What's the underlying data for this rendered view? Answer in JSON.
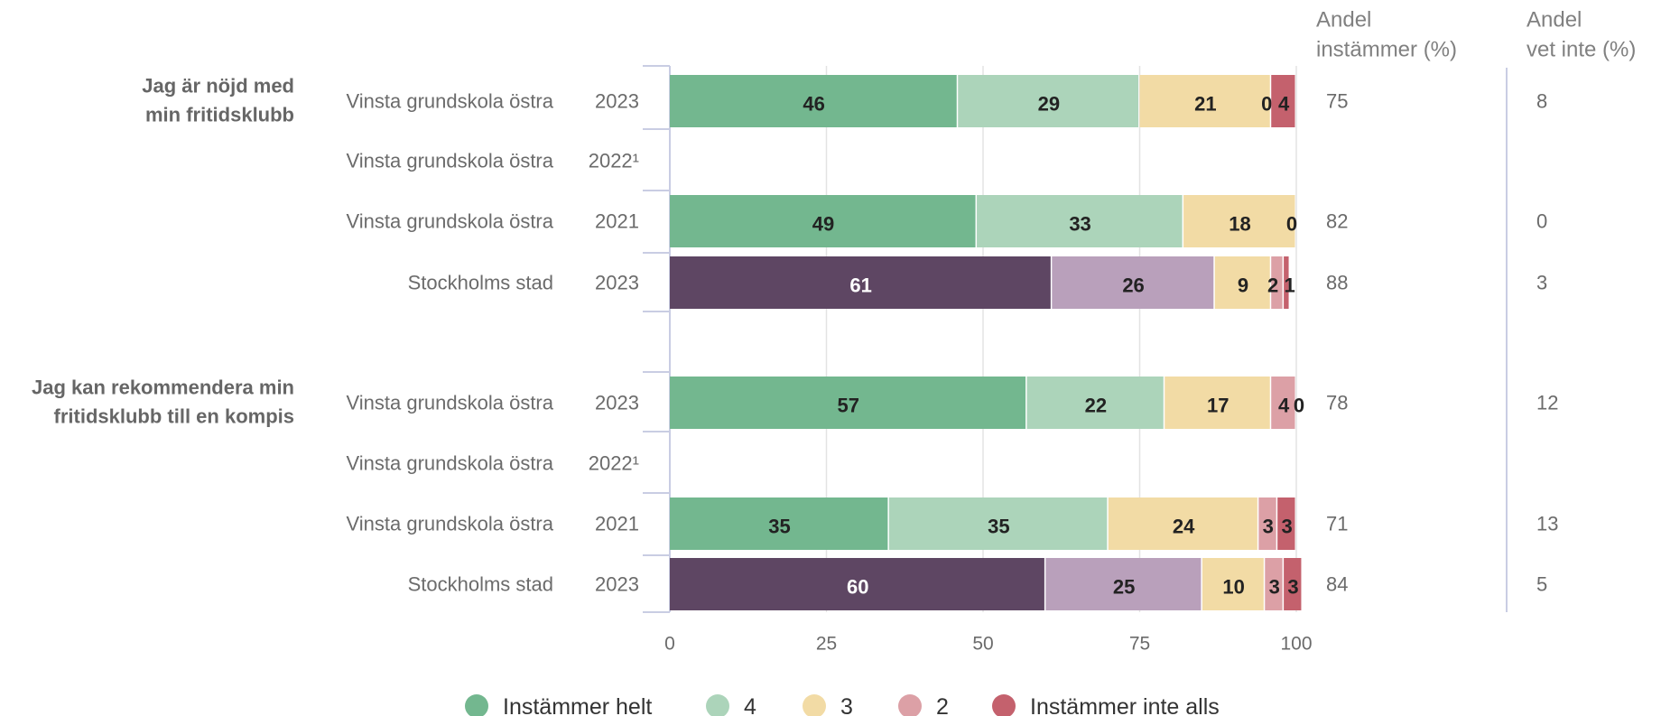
{
  "chart_data": {
    "type": "bar",
    "orientation": "horizontal",
    "stacked": true,
    "xlim": [
      0,
      100
    ],
    "xticks": [
      "0",
      "25",
      "50",
      "75",
      "100"
    ],
    "grid": true,
    "legend_position": "bottom",
    "column_headers": {
      "agree": [
        "Andel",
        "instämmer (%)"
      ],
      "dont_know": [
        "Andel",
        "vet inte (%)"
      ]
    },
    "legend": [
      {
        "name": "Instämmer helt",
        "color": "#73b78f"
      },
      {
        "name": "4",
        "color": "#acd4ba"
      },
      {
        "name": "3",
        "color": "#f2dba5"
      },
      {
        "name": "2",
        "color": "#dca0a6"
      },
      {
        "name": "Instämmer inte alls",
        "color": "#c4616d"
      }
    ],
    "city_colors": [
      "#5e4663",
      "#b9a0bb",
      "#f2dba5",
      "#dca0a6",
      "#c4616d"
    ],
    "groups": [
      {
        "question": [
          "Jag är nöjd med",
          "min fritidsklubb"
        ],
        "rows": [
          {
            "unit": "Vinsta grundskola östra",
            "year": "2023",
            "city": false,
            "values": [
              46,
              29,
              21,
              0,
              4
            ],
            "labels": [
              "46",
              "29",
              "21",
              "0",
              "4"
            ],
            "agree": "75",
            "dont_know": "8"
          },
          {
            "unit": "Vinsta grundskola östra",
            "year": "2022¹",
            "city": false,
            "values": [],
            "labels": [],
            "agree": "",
            "dont_know": ""
          },
          {
            "unit": "Vinsta grundskola östra",
            "year": "2021",
            "city": false,
            "values": [
              49,
              33,
              18,
              0,
              0
            ],
            "labels": [
              "49",
              "33",
              "18",
              "0",
              ""
            ],
            "agree": "82",
            "dont_know": "0"
          },
          {
            "unit": "Stockholms stad",
            "year": "2023",
            "city": true,
            "values": [
              61,
              26,
              9,
              2,
              1
            ],
            "labels": [
              "61",
              "26",
              "9",
              "2",
              "1"
            ],
            "agree": "88",
            "dont_know": "3"
          }
        ]
      },
      {
        "question": [
          "Jag kan rekommendera min",
          "fritidsklubb till en kompis"
        ],
        "rows": [
          {
            "unit": "Vinsta grundskola östra",
            "year": "2023",
            "city": false,
            "values": [
              57,
              22,
              17,
              4,
              0
            ],
            "labels": [
              "57",
              "22",
              "17",
              "4",
              "0"
            ],
            "agree": "78",
            "dont_know": "12"
          },
          {
            "unit": "Vinsta grundskola östra",
            "year": "2022¹",
            "city": false,
            "values": [],
            "labels": [],
            "agree": "",
            "dont_know": ""
          },
          {
            "unit": "Vinsta grundskola östra",
            "year": "2021",
            "city": false,
            "values": [
              35,
              35,
              24,
              3,
              3
            ],
            "labels": [
              "35",
              "35",
              "24",
              "3",
              "3"
            ],
            "agree": "71",
            "dont_know": "13"
          },
          {
            "unit": "Stockholms stad",
            "year": "2023",
            "city": true,
            "values": [
              60,
              25,
              10,
              3,
              3
            ],
            "labels": [
              "60",
              "25",
              "10",
              "3",
              "3"
            ],
            "agree": "84",
            "dont_know": "5"
          }
        ]
      }
    ]
  }
}
